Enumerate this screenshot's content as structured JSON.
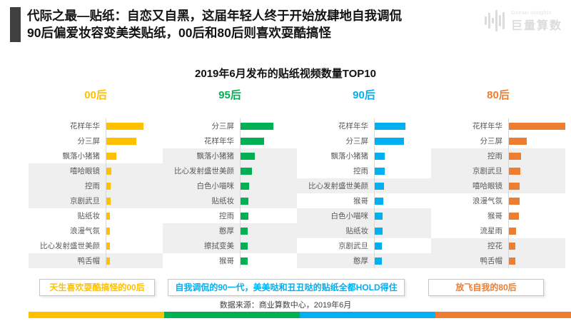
{
  "header": {
    "title_line1": "代际之最—贴纸：自恋又自黑，这届年轻人终于开始放肆地自我调侃",
    "title_line2": "90后偏爱妆容变美类贴纸，00后和80后则喜欢耍酷搞怪"
  },
  "logo": {
    "name": "Ocean Insights",
    "brand": "巨量算数"
  },
  "chart_title": "2019年6月发布的贴纸视频数量TOP10",
  "chart_data": [
    {
      "type": "bar",
      "orientation": "horizontal",
      "group": "00后",
      "color": "#FFC000",
      "value_axis": "hidden — values are estimated relative bar lengths (no numeric axis shown)",
      "categories": [
        "花样年华",
        "分三屏",
        "飘落小猪猪",
        "嘻哈眼镜",
        "控雨",
        "京剧武旦",
        "贴纸妆",
        "浪漫气氛",
        "比心发射盛世美颜",
        "鸭舌帽"
      ],
      "values": [
        52,
        42,
        14,
        7,
        6,
        6,
        5,
        5,
        5,
        5
      ],
      "highlighted": [
        false,
        false,
        false,
        true,
        true,
        true,
        false,
        false,
        false,
        true
      ]
    },
    {
      "type": "bar",
      "orientation": "horizontal",
      "group": "95后",
      "color": "#00B052",
      "value_axis": "hidden — values are estimated relative bar lengths (no numeric axis shown)",
      "categories": [
        "分三屏",
        "花样年华",
        "飘落小猪猪",
        "比心发射盛世美颜",
        "白色小喵咪",
        "贴纸妆",
        "控雨",
        "憨厚",
        "擦拭变美",
        "猴哥"
      ],
      "values": [
        46,
        33,
        20,
        16,
        12,
        11,
        11,
        10,
        10,
        10
      ],
      "highlighted": [
        false,
        false,
        true,
        true,
        true,
        true,
        false,
        true,
        true,
        false
      ]
    },
    {
      "type": "bar",
      "orientation": "horizontal",
      "group": "90后",
      "color": "#00B0F0",
      "value_axis": "hidden — values are estimated relative bar lengths (no numeric axis shown)",
      "categories": [
        "花样年华",
        "分三屏",
        "飘落小猪猪",
        "控雨",
        "比心发射盛世美颜",
        "猴哥",
        "白色小喵咪",
        "贴纸妆",
        "京剧武旦",
        "憨厚"
      ],
      "values": [
        43,
        41,
        14,
        14,
        13,
        12,
        11,
        11,
        10,
        10
      ],
      "highlighted": [
        false,
        false,
        false,
        false,
        true,
        false,
        true,
        true,
        false,
        true
      ]
    },
    {
      "type": "bar",
      "orientation": "horizontal",
      "group": "80后",
      "color": "#ED7D31",
      "value_axis": "hidden — values are estimated relative bar lengths (no numeric axis shown)",
      "categories": [
        "花样年华",
        "分三屏",
        "控雨",
        "京剧武旦",
        "嘻哈眼镜",
        "浪漫气氛",
        "猴哥",
        "流星雨",
        "控花",
        "鸭舌帽"
      ],
      "values": [
        79,
        25,
        17,
        16,
        15,
        15,
        14,
        10,
        9,
        9
      ],
      "highlighted": [
        false,
        false,
        true,
        true,
        true,
        false,
        false,
        false,
        true,
        true
      ]
    }
  ],
  "annotations": [
    {
      "text": "天生喜欢耍酷搞怪的00后",
      "color": "#FFC000"
    },
    {
      "text": "自我调侃的90一代，美美哒和丑丑哒的贴纸全都HOLD得住",
      "color": "#00B0F0"
    },
    {
      "text": "放飞自我的80后",
      "color": "#ED7D31"
    }
  ],
  "footer": {
    "source": "数据来源：商业算数中心，2019年6月"
  },
  "bottom_bar_colors": [
    "#FFC000",
    "#00B052",
    "#00B0F0",
    "#ED7D31"
  ]
}
